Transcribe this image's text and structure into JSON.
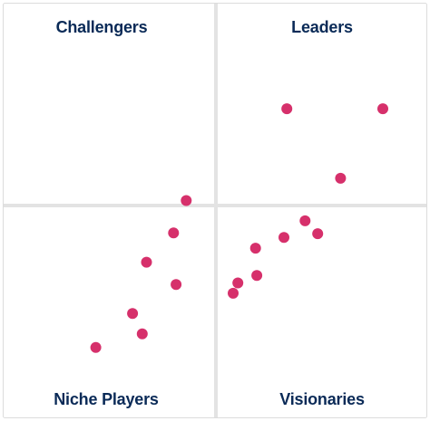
{
  "chart_data": {
    "type": "scatter",
    "title": "",
    "xlabel": "",
    "ylabel": "",
    "xlim": [
      0,
      100
    ],
    "ylim": [
      0,
      100
    ],
    "grid": false,
    "quadrants": [
      {
        "key": "challengers",
        "label": "Challengers",
        "position": "top-left"
      },
      {
        "key": "leaders",
        "label": "Leaders",
        "position": "top-right"
      },
      {
        "key": "niche",
        "label": "Niche Players",
        "position": "bottom-left"
      },
      {
        "key": "visionaries",
        "label": "Visionaries",
        "position": "bottom-right"
      }
    ],
    "points": [
      {
        "x": 21.8,
        "y": 16.9
      },
      {
        "x": 30.5,
        "y": 25.1
      },
      {
        "x": 32.8,
        "y": 20.2
      },
      {
        "x": 33.8,
        "y": 37.5
      },
      {
        "x": 40.8,
        "y": 32.1
      },
      {
        "x": 40.2,
        "y": 44.6
      },
      {
        "x": 43.2,
        "y": 52.4
      },
      {
        "x": 54.3,
        "y": 30.0
      },
      {
        "x": 55.4,
        "y": 32.5
      },
      {
        "x": 59.9,
        "y": 34.3
      },
      {
        "x": 59.6,
        "y": 40.9
      },
      {
        "x": 66.3,
        "y": 43.5
      },
      {
        "x": 74.3,
        "y": 44.4
      },
      {
        "x": 71.3,
        "y": 47.5
      },
      {
        "x": 79.7,
        "y": 57.8
      },
      {
        "x": 67.0,
        "y": 74.6
      },
      {
        "x": 89.7,
        "y": 74.6
      }
    ]
  },
  "colors": {
    "background": "#ffffff",
    "panel_border": "#dcdcdc",
    "divider": "#e3e3e3",
    "label": "#0a2a57",
    "point": "#d6306b"
  }
}
